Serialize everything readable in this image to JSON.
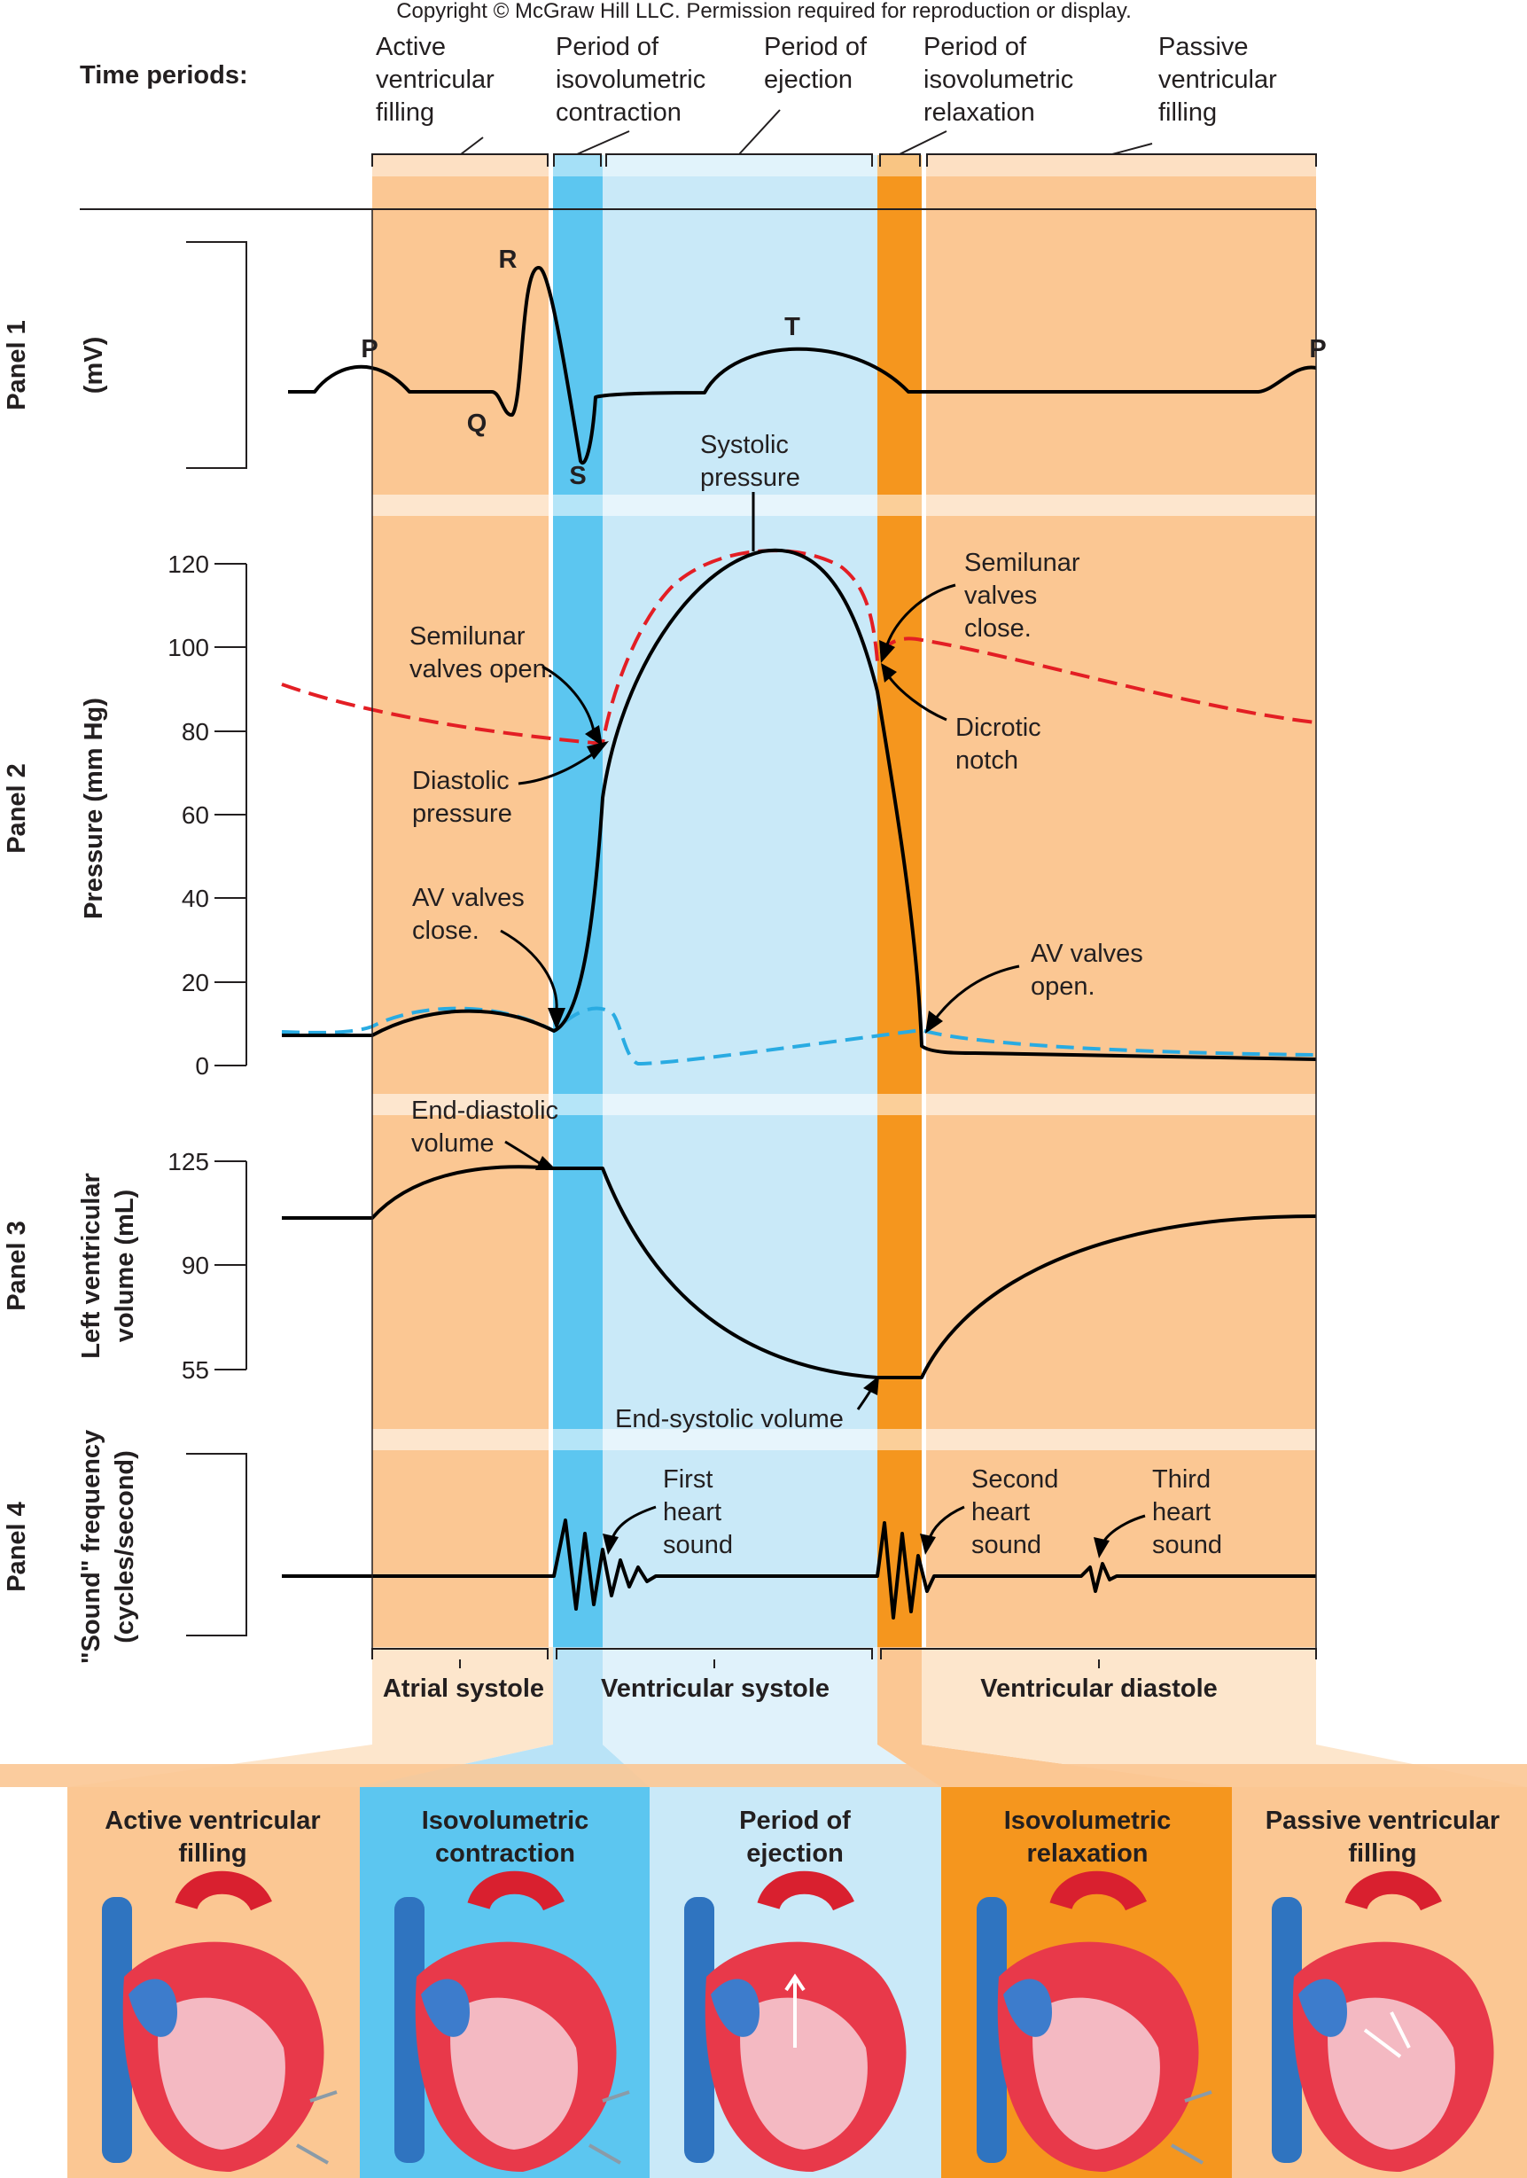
{
  "copyright": "Copyright © McGraw Hill LLC. Permission required for reproduction or display.",
  "colors": {
    "light_orange": "#fbc793",
    "pale_orange": "#fde6cc",
    "dark_orange": "#f5961e",
    "blue": "#5cc6f0",
    "light_blue": "#c9e9f8",
    "ecg": "#000000",
    "aortic_pressure": "#e31e24",
    "atrial_pressure": "#29abe2"
  },
  "header": {
    "time_periods_label": "Time periods:",
    "periods": [
      [
        "Active",
        "ventricular",
        "filling"
      ],
      [
        "Period of",
        "isovolumetric",
        "contraction"
      ],
      [
        "Period of",
        "ejection"
      ],
      [
        "Period of",
        "isovolumetric",
        "relaxation"
      ],
      [
        "Passive",
        "ventricular",
        "filling"
      ]
    ]
  },
  "panels": {
    "p1": {
      "name": "Panel 1",
      "ylabel": "(mV)"
    },
    "p2": {
      "name": "Panel 2",
      "ylabel": "Pressure (mm Hg)",
      "ticks": [
        "120",
        "100",
        "80",
        "60",
        "40",
        "20",
        "0"
      ]
    },
    "p3": {
      "name": "Panel 3",
      "ylabel_line1": "Left ventricular",
      "ylabel_line2": "volume (mL)",
      "ticks": [
        "125",
        "90",
        "55"
      ]
    },
    "p4": {
      "name": "Panel 4",
      "ylabel_line1": "\"Sound\" frequency",
      "ylabel_line2": "(cycles/second)"
    }
  },
  "ecg_waves": {
    "p": "P",
    "q": "Q",
    "r": "R",
    "s": "S",
    "t": "T",
    "p2": "P"
  },
  "annotations": {
    "systolic": [
      "Systolic",
      "pressure"
    ],
    "semilunar_open": [
      "Semilunar",
      "valves open."
    ],
    "diastolic": [
      "Diastolic",
      "pressure"
    ],
    "av_close": [
      "AV valves",
      "close."
    ],
    "semilunar_close": [
      "Semilunar",
      "valves",
      "close."
    ],
    "dicrotic": [
      "Dicrotic",
      "notch"
    ],
    "av_open": [
      "AV valves",
      "open."
    ],
    "edv": [
      "End-diastolic",
      "volume"
    ],
    "esv": "End-systolic volume",
    "first_sound": [
      "First",
      "heart",
      "sound"
    ],
    "second_sound": [
      "Second",
      "heart",
      "sound"
    ],
    "third_sound": [
      "Third",
      "heart",
      "sound"
    ]
  },
  "phases": {
    "atrial": "Atrial systole",
    "ventricular_systole": "Ventricular systole",
    "ventricular_diastole": "Ventricular diastole"
  },
  "bottom_boxes": [
    {
      "line1": "Active ventricular",
      "line2": "filling",
      "icon": "heart-active-filling-icon"
    },
    {
      "line1": "Isovolumetric",
      "line2": "contraction",
      "icon": "heart-isovolumetric-contraction-icon"
    },
    {
      "line1": "Period of",
      "line2": "ejection",
      "icon": "heart-ejection-icon"
    },
    {
      "line1": "Isovolumetric",
      "line2": "relaxation",
      "icon": "heart-isovolumetric-relaxation-icon"
    },
    {
      "line1": "Passive ventricular",
      "line2": "filling",
      "icon": "heart-passive-filling-icon"
    }
  ]
}
